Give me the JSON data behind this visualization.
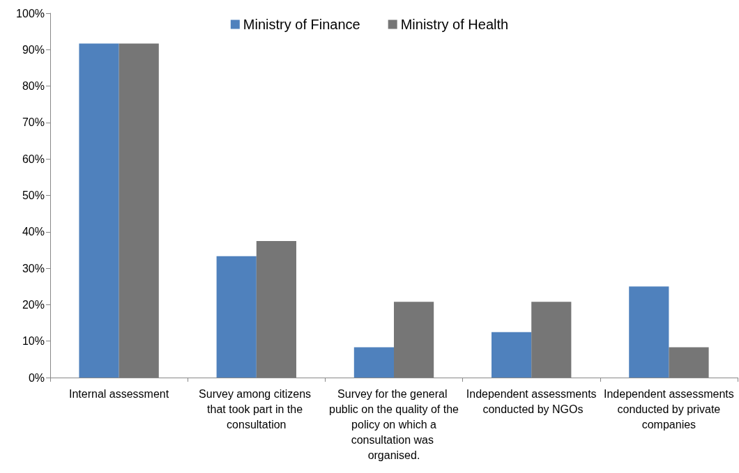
{
  "chart_data": {
    "type": "bar",
    "categories": [
      "Internal assessment",
      "Survey among citizens that took part in the consultation",
      "Survey for the general public on the quality of the policy on which a consultation was organised.",
      "Independent assessments conducted by NGOs",
      "Independent assessments conducted by private companies"
    ],
    "series": [
      {
        "name": "Ministry of Finance",
        "color": "#4f81bd",
        "values": [
          91.7,
          33.3,
          8.3,
          12.5,
          25
        ]
      },
      {
        "name": "Ministry of Health",
        "color": "#767676",
        "values": [
          91.7,
          37.5,
          20.8,
          20.8,
          8.3
        ]
      }
    ],
    "ylim": [
      0,
      100
    ],
    "yticks": [
      {
        "value": 0,
        "label": "0%"
      },
      {
        "value": 10,
        "label": "10%"
      },
      {
        "value": 20,
        "label": "20%"
      },
      {
        "value": 30,
        "label": "30%"
      },
      {
        "value": 40,
        "label": "40%"
      },
      {
        "value": 50,
        "label": "50%"
      },
      {
        "value": 60,
        "label": "60%"
      },
      {
        "value": 70,
        "label": "70%"
      },
      {
        "value": 80,
        "label": "80%"
      },
      {
        "value": 90,
        "label": "90%"
      },
      {
        "value": 100,
        "label": "100%"
      }
    ],
    "grid": false,
    "legend": "top"
  }
}
